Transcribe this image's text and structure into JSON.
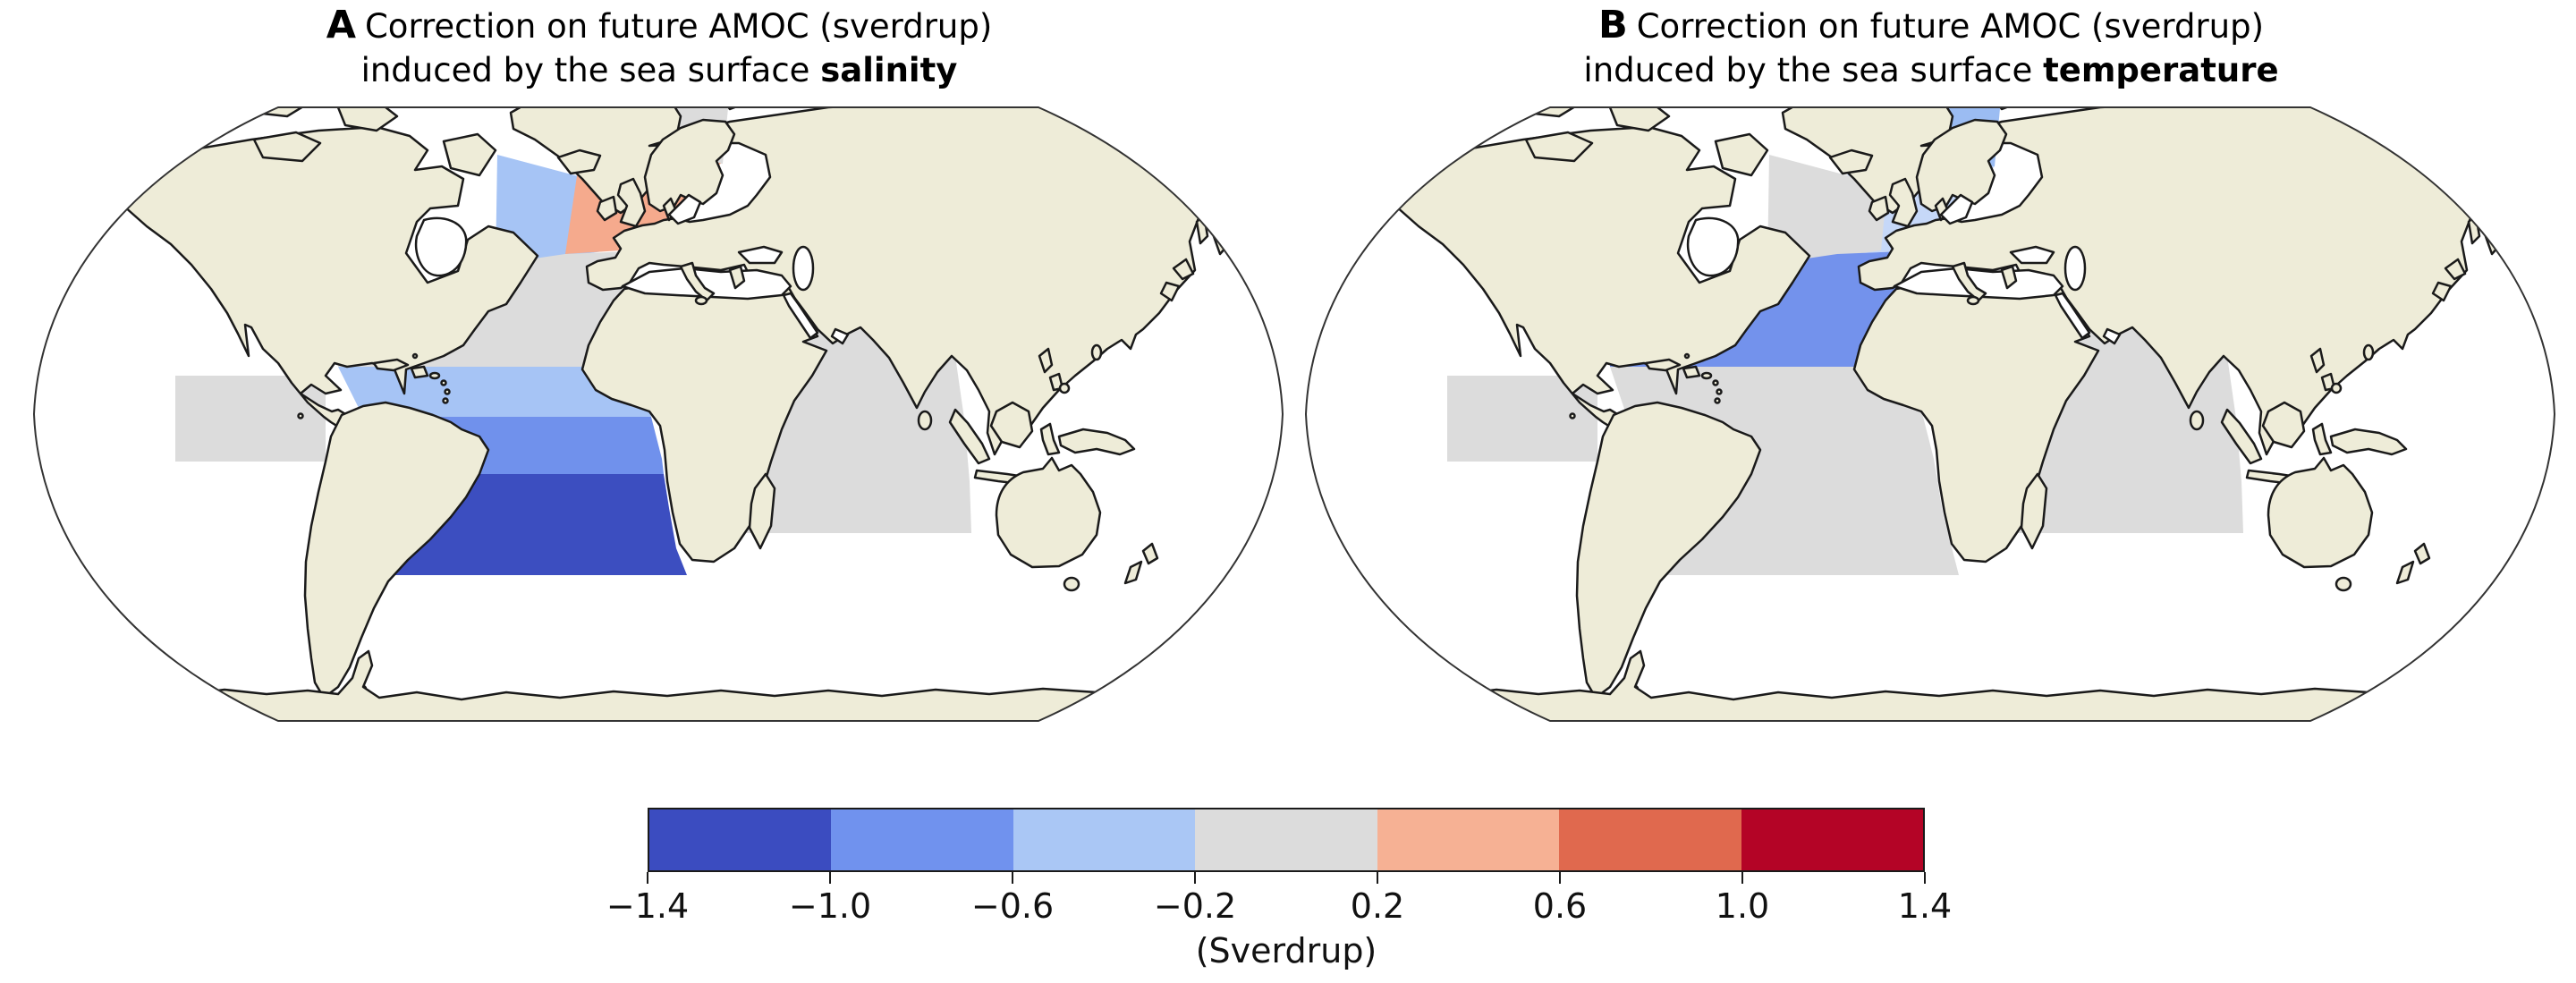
{
  "figure": {
    "panels": [
      {
        "id": "A",
        "letter": "A",
        "title_line1": "Correction on future AMOC (sverdrup)",
        "title_line2_prefix": "induced by the sea surface ",
        "title_line2_bold": "salinity",
        "regions": [
          {
            "id": "nordic",
            "name": "Nordic Seas",
            "value_sv": 0.0,
            "color": "#dcdcdc"
          },
          {
            "id": "labrador",
            "name": "Labrador Sea",
            "value_sv": -0.4,
            "color": "#a6c4f5"
          },
          {
            "id": "ne_atlantic",
            "name": "Northeast Atlantic (45-60N)",
            "value_sv": 0.4,
            "color": "#f5aa8d"
          },
          {
            "id": "subtropical_na",
            "name": "Subtropical North Atlantic (10-45N)",
            "value_sv": 0.0,
            "color": "#dcdcdc"
          },
          {
            "id": "tropical_na",
            "name": "Tropical Atlantic (0-10N)",
            "value_sv": -0.4,
            "color": "#a6c4f5"
          },
          {
            "id": "equatorial_sa",
            "name": "Equatorial South Atlantic (0-15S)",
            "value_sv": -0.8,
            "color": "#7091ec"
          },
          {
            "id": "south_atlantic",
            "name": "South Atlantic (15-35S)",
            "value_sv": -1.2,
            "color": "#3c4ec0"
          },
          {
            "id": "east_pacific",
            "name": "Eastern Tropical Pacific",
            "value_sv": 0.0,
            "color": "#dcdcdc"
          },
          {
            "id": "indian",
            "name": "Indian Ocean",
            "value_sv": 0.0,
            "color": "#dcdcdc"
          }
        ]
      },
      {
        "id": "B",
        "letter": "B",
        "title_line1": "Correction on future AMOC (sverdrup)",
        "title_line2_prefix": "induced by the sea surface ",
        "title_line2_bold": "temperature",
        "regions": [
          {
            "id": "nordic",
            "name": "Nordic Seas",
            "value_sv": -0.4,
            "color": "#9bbcf2"
          },
          {
            "id": "ne_atlantic",
            "name": "Northeast Atlantic (45-60N)",
            "value_sv": -0.25,
            "color": "#c6d8f8"
          },
          {
            "id": "labrador",
            "name": "Labrador Sea",
            "value_sv": 0.0,
            "color": "#dcdcdc"
          },
          {
            "id": "subtropical_na",
            "name": "Subtropical North Atlantic incl. Caribbean (10-45N)",
            "value_sv": -0.8,
            "color": "#7392ec"
          },
          {
            "id": "tropical_south_atlantic",
            "name": "Tropical and South Atlantic (10N-35S)",
            "value_sv": 0.0,
            "color": "#dcdcdc"
          },
          {
            "id": "east_pacific",
            "name": "Eastern Tropical Pacific",
            "value_sv": 0.0,
            "color": "#dcdcdc"
          },
          {
            "id": "indian",
            "name": "Indian Ocean",
            "value_sv": 0.0,
            "color": "#dcdcdc"
          }
        ]
      }
    ],
    "colorbar": {
      "tick_labels": [
        "−1.4",
        "−1.0",
        "−0.6",
        "−0.2",
        "0.2",
        "0.6",
        "1.0",
        "1.4"
      ],
      "boundaries": [
        -1.4,
        -1.0,
        -0.6,
        -0.2,
        0.2,
        0.6,
        1.0,
        1.4
      ],
      "bin_colors": [
        "#3b4cc0",
        "#7092ee",
        "#aac7f5",
        "#dcdcdc",
        "#f6b194",
        "#e0694e",
        "#b40426"
      ],
      "caption": "(Sverdrup)"
    },
    "map_style": {
      "land_color": "#eeecd8",
      "ocean_color": "#ffffff",
      "coast_color": "#1a1a1a",
      "no_data_color": "#ffffff"
    }
  },
  "chart_data": [
    {
      "type": "heatmap",
      "title": "A Correction on future AMOC (sverdrup) induced by the sea surface salinity",
      "units": "Sverdrup",
      "colorbar_ticks": [
        -1.4,
        -1.0,
        -0.6,
        -0.2,
        0.2,
        0.6,
        1.0,
        1.4
      ],
      "legend_position": "bottom",
      "regions": [
        {
          "name": "Nordic Seas",
          "value_sv": 0.0
        },
        {
          "name": "Labrador Sea",
          "value_sv": -0.4
        },
        {
          "name": "Northeast Atlantic (45-60N)",
          "value_sv": 0.4
        },
        {
          "name": "Subtropical North Atlantic (10-45N)",
          "value_sv": 0.0
        },
        {
          "name": "Tropical Atlantic (0-10N)",
          "value_sv": -0.4
        },
        {
          "name": "Equatorial South Atlantic (0-15S)",
          "value_sv": -0.8
        },
        {
          "name": "South Atlantic (15-35S)",
          "value_sv": -1.2
        },
        {
          "name": "Eastern Tropical Pacific",
          "value_sv": 0.0
        },
        {
          "name": "Indian Ocean",
          "value_sv": 0.0
        }
      ]
    },
    {
      "type": "heatmap",
      "title": "B Correction on future AMOC (sverdrup) induced by the sea surface temperature",
      "units": "Sverdrup",
      "colorbar_ticks": [
        -1.4,
        -1.0,
        -0.6,
        -0.2,
        0.2,
        0.6,
        1.0,
        1.4
      ],
      "legend_position": "bottom",
      "regions": [
        {
          "name": "Nordic Seas",
          "value_sv": -0.4
        },
        {
          "name": "Northeast Atlantic (45-60N)",
          "value_sv": -0.25
        },
        {
          "name": "Labrador Sea",
          "value_sv": 0.0
        },
        {
          "name": "Subtropical North Atlantic incl. Caribbean (10-45N)",
          "value_sv": -0.8
        },
        {
          "name": "Tropical and South Atlantic (10N-35S)",
          "value_sv": 0.0
        },
        {
          "name": "Eastern Tropical Pacific",
          "value_sv": 0.0
        },
        {
          "name": "Indian Ocean",
          "value_sv": 0.0
        }
      ]
    }
  ]
}
